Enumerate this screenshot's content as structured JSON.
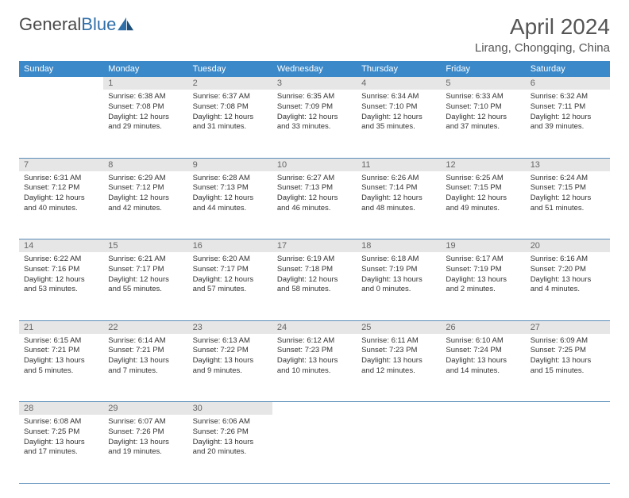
{
  "brand": {
    "part1": "General",
    "part2": "Blue"
  },
  "title": "April 2024",
  "location": "Lirang, Chongqing, China",
  "colors": {
    "header_bg": "#3b89c9",
    "daynum_bg": "#e6e6e6",
    "row_border": "#5a8db8",
    "text": "#333333",
    "title_text": "#555555"
  },
  "day_headers": [
    "Sunday",
    "Monday",
    "Tuesday",
    "Wednesday",
    "Thursday",
    "Friday",
    "Saturday"
  ],
  "weeks": [
    {
      "nums": [
        "",
        "1",
        "2",
        "3",
        "4",
        "5",
        "6"
      ],
      "cells": [
        null,
        {
          "sunrise": "6:38 AM",
          "sunset": "7:08 PM",
          "daylight": "12 hours and 29 minutes."
        },
        {
          "sunrise": "6:37 AM",
          "sunset": "7:08 PM",
          "daylight": "12 hours and 31 minutes."
        },
        {
          "sunrise": "6:35 AM",
          "sunset": "7:09 PM",
          "daylight": "12 hours and 33 minutes."
        },
        {
          "sunrise": "6:34 AM",
          "sunset": "7:10 PM",
          "daylight": "12 hours and 35 minutes."
        },
        {
          "sunrise": "6:33 AM",
          "sunset": "7:10 PM",
          "daylight": "12 hours and 37 minutes."
        },
        {
          "sunrise": "6:32 AM",
          "sunset": "7:11 PM",
          "daylight": "12 hours and 39 minutes."
        }
      ]
    },
    {
      "nums": [
        "7",
        "8",
        "9",
        "10",
        "11",
        "12",
        "13"
      ],
      "cells": [
        {
          "sunrise": "6:31 AM",
          "sunset": "7:12 PM",
          "daylight": "12 hours and 40 minutes."
        },
        {
          "sunrise": "6:29 AM",
          "sunset": "7:12 PM",
          "daylight": "12 hours and 42 minutes."
        },
        {
          "sunrise": "6:28 AM",
          "sunset": "7:13 PM",
          "daylight": "12 hours and 44 minutes."
        },
        {
          "sunrise": "6:27 AM",
          "sunset": "7:13 PM",
          "daylight": "12 hours and 46 minutes."
        },
        {
          "sunrise": "6:26 AM",
          "sunset": "7:14 PM",
          "daylight": "12 hours and 48 minutes."
        },
        {
          "sunrise": "6:25 AM",
          "sunset": "7:15 PM",
          "daylight": "12 hours and 49 minutes."
        },
        {
          "sunrise": "6:24 AM",
          "sunset": "7:15 PM",
          "daylight": "12 hours and 51 minutes."
        }
      ]
    },
    {
      "nums": [
        "14",
        "15",
        "16",
        "17",
        "18",
        "19",
        "20"
      ],
      "cells": [
        {
          "sunrise": "6:22 AM",
          "sunset": "7:16 PM",
          "daylight": "12 hours and 53 minutes."
        },
        {
          "sunrise": "6:21 AM",
          "sunset": "7:17 PM",
          "daylight": "12 hours and 55 minutes."
        },
        {
          "sunrise": "6:20 AM",
          "sunset": "7:17 PM",
          "daylight": "12 hours and 57 minutes."
        },
        {
          "sunrise": "6:19 AM",
          "sunset": "7:18 PM",
          "daylight": "12 hours and 58 minutes."
        },
        {
          "sunrise": "6:18 AM",
          "sunset": "7:19 PM",
          "daylight": "13 hours and 0 minutes."
        },
        {
          "sunrise": "6:17 AM",
          "sunset": "7:19 PM",
          "daylight": "13 hours and 2 minutes."
        },
        {
          "sunrise": "6:16 AM",
          "sunset": "7:20 PM",
          "daylight": "13 hours and 4 minutes."
        }
      ]
    },
    {
      "nums": [
        "21",
        "22",
        "23",
        "24",
        "25",
        "26",
        "27"
      ],
      "cells": [
        {
          "sunrise": "6:15 AM",
          "sunset": "7:21 PM",
          "daylight": "13 hours and 5 minutes."
        },
        {
          "sunrise": "6:14 AM",
          "sunset": "7:21 PM",
          "daylight": "13 hours and 7 minutes."
        },
        {
          "sunrise": "6:13 AM",
          "sunset": "7:22 PM",
          "daylight": "13 hours and 9 minutes."
        },
        {
          "sunrise": "6:12 AM",
          "sunset": "7:23 PM",
          "daylight": "13 hours and 10 minutes."
        },
        {
          "sunrise": "6:11 AM",
          "sunset": "7:23 PM",
          "daylight": "13 hours and 12 minutes."
        },
        {
          "sunrise": "6:10 AM",
          "sunset": "7:24 PM",
          "daylight": "13 hours and 14 minutes."
        },
        {
          "sunrise": "6:09 AM",
          "sunset": "7:25 PM",
          "daylight": "13 hours and 15 minutes."
        }
      ]
    },
    {
      "nums": [
        "28",
        "29",
        "30",
        "",
        "",
        "",
        ""
      ],
      "cells": [
        {
          "sunrise": "6:08 AM",
          "sunset": "7:25 PM",
          "daylight": "13 hours and 17 minutes."
        },
        {
          "sunrise": "6:07 AM",
          "sunset": "7:26 PM",
          "daylight": "13 hours and 19 minutes."
        },
        {
          "sunrise": "6:06 AM",
          "sunset": "7:26 PM",
          "daylight": "13 hours and 20 minutes."
        },
        null,
        null,
        null,
        null
      ]
    }
  ],
  "labels": {
    "sunrise": "Sunrise:",
    "sunset": "Sunset:",
    "daylight": "Daylight:"
  }
}
